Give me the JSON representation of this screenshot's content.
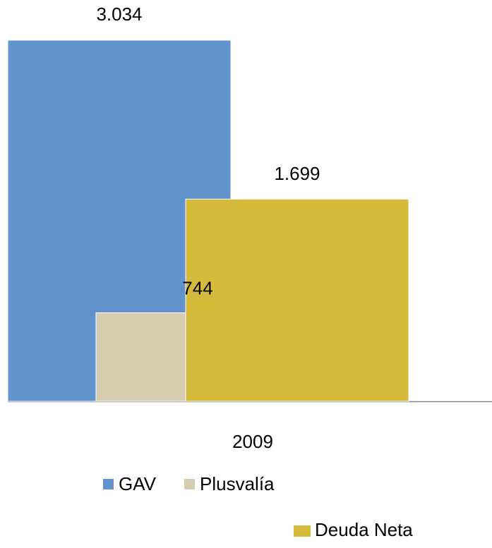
{
  "chart_data": {
    "type": "bar",
    "categories": [
      "2009"
    ],
    "series": [
      {
        "name": "GAV",
        "color": "#6192cc",
        "values": [
          3034
        ],
        "value_labels": [
          "3.034"
        ]
      },
      {
        "name": "Plusvalía",
        "color": "#d6cdb0",
        "values": [
          744
        ],
        "value_labels": [
          "744"
        ]
      },
      {
        "name": "Deuda Neta",
        "color": "#d5ba3b",
        "values": [
          1699
        ],
        "value_labels": [
          "1.699"
        ]
      }
    ]
  }
}
